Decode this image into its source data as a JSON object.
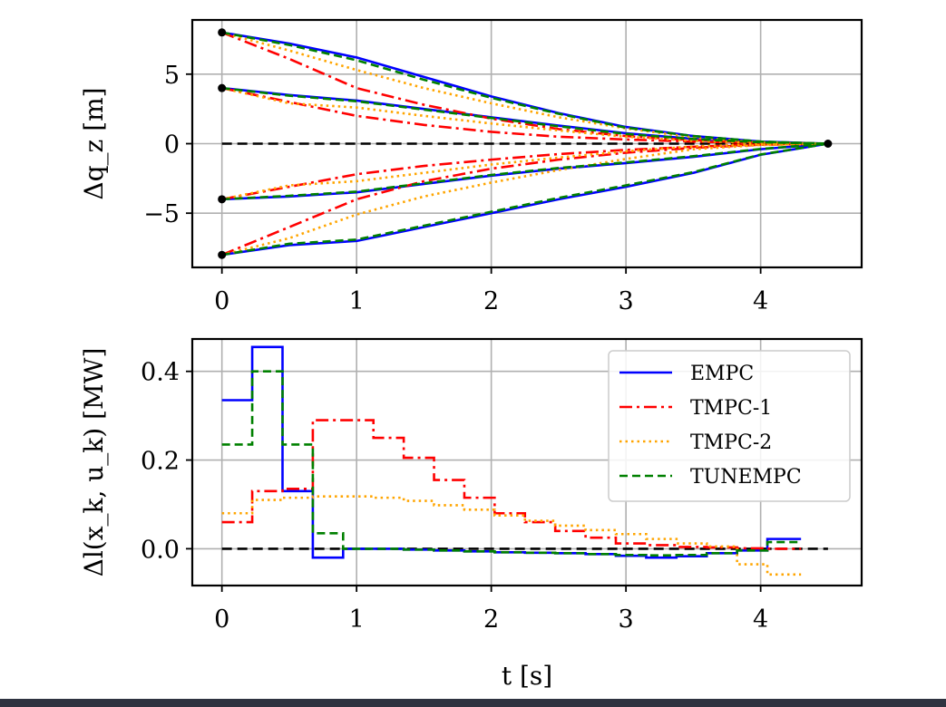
{
  "figure": {
    "colors": {
      "EMPC": "#0000ff",
      "TMPC-1": "#ff0000",
      "TMPC-2": "#ffa500",
      "TUNEMPC": "#008000",
      "reference": "#000000",
      "grid": "#b0b0b0"
    }
  },
  "chart_data": [
    {
      "type": "line",
      "ylabel": "Δq_z [m]",
      "xlim": [
        -0.22,
        4.75
      ],
      "ylim": [
        -8.9,
        8.9
      ],
      "xticks": [
        0,
        1,
        2,
        3,
        4
      ],
      "xtick_labels": [
        "0",
        "1",
        "2",
        "3",
        "4"
      ],
      "yticks": [
        -5,
        0,
        5
      ],
      "ytick_labels": [
        "−5",
        "0",
        "5"
      ],
      "grid": true,
      "reference_line": 0,
      "marker_points": [
        [
          0,
          8
        ],
        [
          0,
          4
        ],
        [
          0,
          -4
        ],
        [
          0,
          -8
        ],
        [
          4.5,
          0
        ]
      ],
      "series": [
        {
          "name": "EMPC",
          "style": "solid",
          "trajectories": [
            [
              [
                0,
                8
              ],
              [
                0.5,
                7.2
              ],
              [
                1,
                6.2
              ],
              [
                1.5,
                4.8
              ],
              [
                2,
                3.4
              ],
              [
                2.5,
                2.2
              ],
              [
                3,
                1.2
              ],
              [
                3.5,
                0.55
              ],
              [
                4,
                0.15
              ],
              [
                4.5,
                0
              ]
            ],
            [
              [
                0,
                4
              ],
              [
                0.5,
                3.5
              ],
              [
                1,
                3.1
              ],
              [
                1.5,
                2.5
              ],
              [
                2,
                1.9
              ],
              [
                2.5,
                1.3
              ],
              [
                3,
                0.75
              ],
              [
                3.5,
                0.35
              ],
              [
                4,
                0.1
              ],
              [
                4.5,
                0
              ]
            ],
            [
              [
                0,
                -4
              ],
              [
                0.5,
                -3.8
              ],
              [
                1,
                -3.5
              ],
              [
                1.5,
                -2.9
              ],
              [
                2,
                -2.3
              ],
              [
                2.5,
                -1.8
              ],
              [
                3,
                -1.4
              ],
              [
                3.5,
                -0.95
              ],
              [
                4,
                -0.4
              ],
              [
                4.5,
                0
              ]
            ],
            [
              [
                0,
                -8
              ],
              [
                0.5,
                -7.3
              ],
              [
                1,
                -7.0
              ],
              [
                1.5,
                -6.0
              ],
              [
                2,
                -5.0
              ],
              [
                2.5,
                -4.0
              ],
              [
                3,
                -3.1
              ],
              [
                3.5,
                -2.1
              ],
              [
                4,
                -0.8
              ],
              [
                4.5,
                0
              ]
            ]
          ]
        },
        {
          "name": "TMPC-1",
          "style": "dashdot",
          "trajectories": [
            [
              [
                0,
                8
              ],
              [
                0.5,
                6.1
              ],
              [
                1,
                4.0
              ],
              [
                1.5,
                2.8
              ],
              [
                2,
                1.8
              ],
              [
                2.5,
                1.05
              ],
              [
                3,
                0.55
              ],
              [
                3.5,
                0.25
              ],
              [
                4,
                0.07
              ],
              [
                4.5,
                0
              ]
            ],
            [
              [
                0,
                4
              ],
              [
                0.5,
                3.0
              ],
              [
                1,
                2.0
              ],
              [
                1.5,
                1.35
              ],
              [
                2,
                0.85
              ],
              [
                2.5,
                0.5
              ],
              [
                3,
                0.3
              ],
              [
                3.5,
                0.15
              ],
              [
                4,
                0.04
              ],
              [
                4.5,
                0
              ]
            ],
            [
              [
                0,
                -4
              ],
              [
                0.5,
                -3.1
              ],
              [
                1,
                -2.2
              ],
              [
                1.5,
                -1.6
              ],
              [
                2,
                -1.15
              ],
              [
                2.5,
                -0.75
              ],
              [
                3,
                -0.45
              ],
              [
                3.5,
                -0.22
              ],
              [
                4,
                -0.06
              ],
              [
                4.5,
                0
              ]
            ],
            [
              [
                0,
                -8
              ],
              [
                0.5,
                -6.0
              ],
              [
                1,
                -4.0
              ],
              [
                1.5,
                -2.7
              ],
              [
                2,
                -1.8
              ],
              [
                2.5,
                -1.15
              ],
              [
                3,
                -0.65
              ],
              [
                3.5,
                -0.3
              ],
              [
                4,
                -0.08
              ],
              [
                4.5,
                0
              ]
            ]
          ]
        },
        {
          "name": "TMPC-2",
          "style": "dotted",
          "trajectories": [
            [
              [
                0,
                8
              ],
              [
                0.5,
                6.7
              ],
              [
                1,
                5.3
              ],
              [
                1.5,
                4.0
              ],
              [
                2,
                2.9
              ],
              [
                2.5,
                1.9
              ],
              [
                3,
                1.1
              ],
              [
                3.5,
                0.45
              ],
              [
                4,
                0.1
              ],
              [
                4.5,
                0
              ]
            ],
            [
              [
                0,
                4
              ],
              [
                0.5,
                2.9
              ],
              [
                1,
                2.6
              ],
              [
                1.5,
                2.0
              ],
              [
                2,
                1.45
              ],
              [
                2.5,
                0.95
              ],
              [
                3,
                0.5
              ],
              [
                3.5,
                0.2
              ],
              [
                4,
                0.05
              ],
              [
                4.5,
                0
              ]
            ],
            [
              [
                0,
                -4
              ],
              [
                0.5,
                -3.0
              ],
              [
                1,
                -2.7
              ],
              [
                1.5,
                -2.1
              ],
              [
                2,
                -1.5
              ],
              [
                2.5,
                -1.0
              ],
              [
                3,
                -0.55
              ],
              [
                3.5,
                -0.2
              ],
              [
                4,
                -0.05
              ],
              [
                4.5,
                0
              ]
            ],
            [
              [
                0,
                -8
              ],
              [
                0.5,
                -6.8
              ],
              [
                1,
                -5.1
              ],
              [
                1.5,
                -3.8
              ],
              [
                2,
                -2.8
              ],
              [
                2.5,
                -1.9
              ],
              [
                3,
                -1.1
              ],
              [
                3.5,
                -0.4
              ],
              [
                4,
                -0.1
              ],
              [
                4.5,
                0
              ]
            ]
          ]
        },
        {
          "name": "TUNEMPC",
          "style": "dashed",
          "trajectories": [
            [
              [
                0,
                8
              ],
              [
                0.5,
                7.1
              ],
              [
                1,
                6.0
              ],
              [
                1.5,
                4.6
              ],
              [
                2,
                3.3
              ],
              [
                2.5,
                2.15
              ],
              [
                3,
                1.15
              ],
              [
                3.5,
                0.55
              ],
              [
                4,
                0.15
              ],
              [
                4.5,
                0
              ]
            ],
            [
              [
                0,
                4
              ],
              [
                0.5,
                3.45
              ],
              [
                1,
                3.05
              ],
              [
                1.5,
                2.45
              ],
              [
                2,
                1.85
              ],
              [
                2.5,
                1.25
              ],
              [
                3,
                0.7
              ],
              [
                3.5,
                0.33
              ],
              [
                4,
                0.1
              ],
              [
                4.5,
                0
              ]
            ],
            [
              [
                0,
                -4
              ],
              [
                0.5,
                -3.75
              ],
              [
                1,
                -3.45
              ],
              [
                1.5,
                -2.85
              ],
              [
                2,
                -2.25
              ],
              [
                2.5,
                -1.75
              ],
              [
                3,
                -1.35
              ],
              [
                3.5,
                -0.9
              ],
              [
                4,
                -0.38
              ],
              [
                4.5,
                0
              ]
            ],
            [
              [
                0,
                -8
              ],
              [
                0.5,
                -7.2
              ],
              [
                1,
                -6.9
              ],
              [
                1.5,
                -5.9
              ],
              [
                2,
                -4.9
              ],
              [
                2.5,
                -3.9
              ],
              [
                3,
                -3.0
              ],
              [
                3.5,
                -2.05
              ],
              [
                4,
                -0.78
              ],
              [
                4.5,
                0
              ]
            ]
          ]
        }
      ]
    },
    {
      "type": "line",
      "step": true,
      "xlabel": "t [s]",
      "ylabel": "Δl(x_k, u_k) [MW]",
      "xlim": [
        -0.22,
        4.75
      ],
      "ylim": [
        -0.083,
        0.473
      ],
      "xticks": [
        0,
        1,
        2,
        3,
        4
      ],
      "xtick_labels": [
        "0",
        "1",
        "2",
        "3",
        "4"
      ],
      "yticks": [
        0.0,
        0.2,
        0.4
      ],
      "ytick_labels": [
        "0.0",
        "0.2",
        "0.4"
      ],
      "grid": true,
      "reference_line": 0,
      "legend_position": "top-right",
      "series": [
        {
          "name": "EMPC",
          "style": "solid",
          "x": [
            0,
            0.225,
            0.45,
            0.675,
            0.9,
            1.125,
            1.35,
            1.575,
            1.8,
            2.025,
            2.25,
            2.475,
            2.7,
            2.925,
            3.15,
            3.375,
            3.6,
            3.825,
            4.05,
            4.3
          ],
          "y": [
            0.335,
            0.455,
            0.13,
            -0.02,
            0,
            0,
            -0.002,
            -0.004,
            -0.006,
            -0.008,
            -0.009,
            -0.01,
            -0.012,
            -0.016,
            -0.02,
            -0.017,
            -0.01,
            -0.004,
            0.022,
            0.022
          ]
        },
        {
          "name": "TMPC-1",
          "style": "dashdot",
          "x": [
            0,
            0.225,
            0.45,
            0.675,
            0.9,
            1.125,
            1.35,
            1.575,
            1.8,
            2.025,
            2.25,
            2.475,
            2.7,
            2.925,
            3.15,
            3.375,
            3.6,
            3.825,
            4.05,
            4.3
          ],
          "y": [
            0.06,
            0.13,
            0.135,
            0.29,
            0.29,
            0.25,
            0.205,
            0.155,
            0.115,
            0.08,
            0.06,
            0.04,
            0.025,
            0.012,
            0.008,
            0.004,
            0.003,
            0.001,
            0.0,
            0.0
          ]
        },
        {
          "name": "TMPC-2",
          "style": "dotted",
          "x": [
            0,
            0.225,
            0.45,
            0.675,
            0.9,
            1.125,
            1.35,
            1.575,
            1.8,
            2.025,
            2.25,
            2.475,
            2.7,
            2.925,
            3.15,
            3.375,
            3.6,
            3.825,
            4.05,
            4.3
          ],
          "y": [
            0.08,
            0.11,
            0.115,
            0.118,
            0.118,
            0.115,
            0.108,
            0.098,
            0.088,
            0.075,
            0.063,
            0.052,
            0.042,
            0.033,
            0.022,
            0.012,
            0.005,
            -0.035,
            -0.058,
            -0.058
          ]
        },
        {
          "name": "TUNEMPC",
          "style": "dashed",
          "x": [
            0,
            0.225,
            0.45,
            0.675,
            0.9,
            1.125,
            1.35,
            1.575,
            1.8,
            2.025,
            2.25,
            2.475,
            2.7,
            2.925,
            3.15,
            3.375,
            3.6,
            3.825,
            4.05,
            4.3
          ],
          "y": [
            0.235,
            0.4,
            0.235,
            0.035,
            0,
            0,
            -0.002,
            -0.004,
            -0.006,
            -0.008,
            -0.009,
            -0.01,
            -0.012,
            -0.014,
            -0.015,
            -0.014,
            -0.01,
            -0.004,
            0.015,
            0.015
          ]
        }
      ]
    }
  ]
}
